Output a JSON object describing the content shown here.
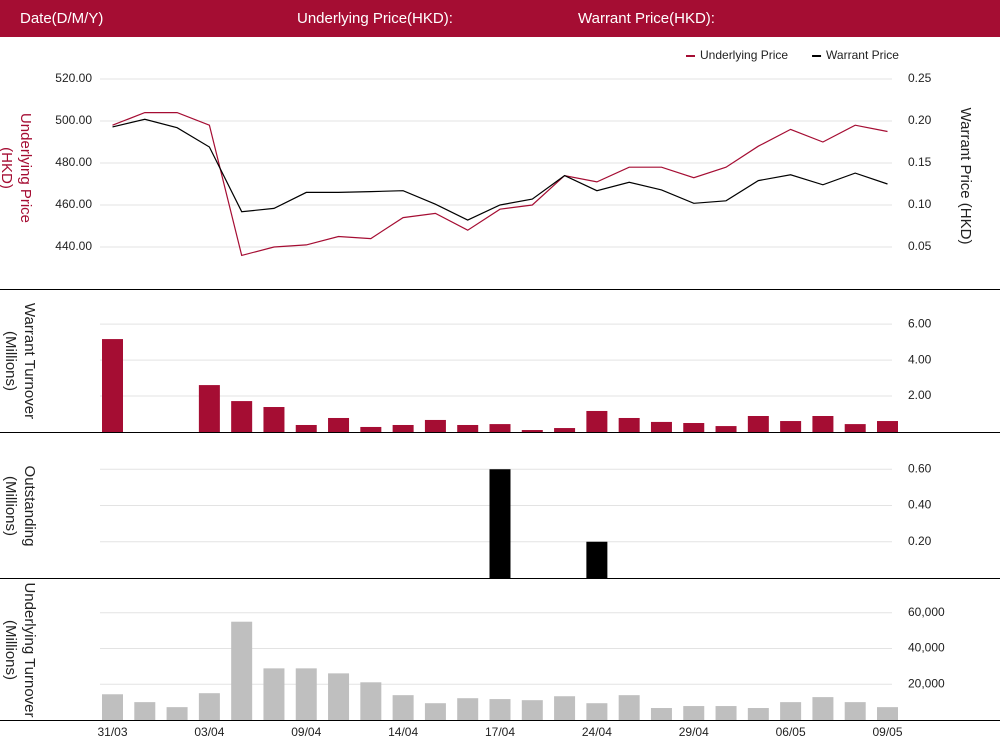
{
  "header": {
    "date": "Date(D/M/Y)",
    "underlying": "Underlying Price(HKD):",
    "warrant": "Warrant Price(HKD):"
  },
  "chart_data": [
    {
      "type": "line",
      "ylim": [
        420,
        530
      ],
      "yticks": [
        {
          "value": 440,
          "label": "440.00"
        },
        {
          "value": 460,
          "label": "460.00"
        },
        {
          "value": 480,
          "label": "480.00"
        },
        {
          "value": 500,
          "label": "500.00"
        },
        {
          "value": 520,
          "label": "520.00"
        }
      ],
      "y2lim": [
        0,
        0.275
      ],
      "y2ticks": [
        0.05,
        {
          "value": 0.1,
          "label": "0.10"
        },
        0.15,
        {
          "value": 0.2,
          "label": "0.20"
        },
        0.25
      ],
      "y_label": "Underlying Price (HKD)",
      "y2_label": "Warrant Price (HKD)",
      "grid": true,
      "legend": "top-right",
      "series": [
        {
          "name": "Underlying Price",
          "color": "#a50d33",
          "values": [
            498,
            504,
            504,
            498,
            436,
            440,
            441,
            445,
            444,
            454,
            456,
            448,
            458,
            460,
            474,
            471,
            478,
            478,
            473,
            478,
            488,
            496,
            490,
            498,
            495
          ]
        },
        {
          "name": "Warrant Price",
          "color": "#000000",
          "axis": "y2",
          "values": [
            0.193,
            0.202,
            0.192,
            0.169,
            0.092,
            0.096,
            0.115,
            0.115,
            0.116,
            0.117,
            0.101,
            0.082,
            0.1,
            0.107,
            0.135,
            0.117,
            0.127,
            0.118,
            0.102,
            0.105,
            0.129,
            0.136,
            0.124,
            0.138,
            0.125
          ]
        }
      ]
    },
    {
      "type": "bar",
      "color": "#a50d33",
      "ylim": [
        0,
        7.9
      ],
      "yticks": [
        {
          "value": 2,
          "label": "2.00"
        },
        {
          "value": 4,
          "label": "4.00"
        },
        {
          "value": 6,
          "label": "6.00"
        }
      ],
      "y_label": "Warrant Turnover (Millions)",
      "grid": true,
      "values": [
        5.17,
        0,
        0,
        2.61,
        1.72,
        1.39,
        0.39,
        0.78,
        0.28,
        0.39,
        0.67,
        0.39,
        0.44,
        0.11,
        0.22,
        1.17,
        0.78,
        0.56,
        0.5,
        0.33,
        0.89,
        0.61,
        0.89,
        0.44,
        0.61
      ]
    },
    {
      "type": "bar",
      "color": "#000000",
      "ylim": [
        0,
        0.8
      ],
      "yticks": [
        {
          "value": 0.2,
          "label": "0.20"
        },
        {
          "value": 0.4,
          "label": "0.40"
        },
        {
          "value": 0.6,
          "label": "0.60"
        }
      ],
      "y_label": "Outstanding (Millions)",
      "grid": true,
      "values": [
        0,
        0,
        0,
        0,
        0,
        0,
        0,
        0,
        0,
        0,
        0,
        0,
        0.6,
        0,
        0,
        0.2,
        0,
        0,
        0,
        0,
        0,
        0,
        0,
        0,
        0
      ]
    },
    {
      "type": "bar",
      "color": "#bfbfbf",
      "ylim": [
        0,
        78900
      ],
      "yticks": [
        {
          "value": 20000,
          "label": "20,000"
        },
        {
          "value": 40000,
          "label": "40,000"
        },
        {
          "value": 60000,
          "label": "60,000"
        }
      ],
      "y_label": "Underlying Turnover (Millions)",
      "grid": true,
      "categories": [
        "31/03",
        null,
        null,
        "03/04",
        null,
        null,
        "09/04",
        null,
        null,
        "14/04",
        null,
        null,
        "17/04",
        null,
        null,
        "24/04",
        null,
        null,
        "29/04",
        null,
        null,
        "06/05",
        null,
        null,
        "09/05"
      ],
      "values": [
        14400,
        10000,
        7200,
        15000,
        55000,
        28900,
        28900,
        26100,
        21100,
        13900,
        9400,
        12200,
        11700,
        11100,
        13300,
        9400,
        13900,
        6700,
        7800,
        7800,
        6700,
        10000,
        12800,
        10000,
        7200
      ]
    }
  ]
}
